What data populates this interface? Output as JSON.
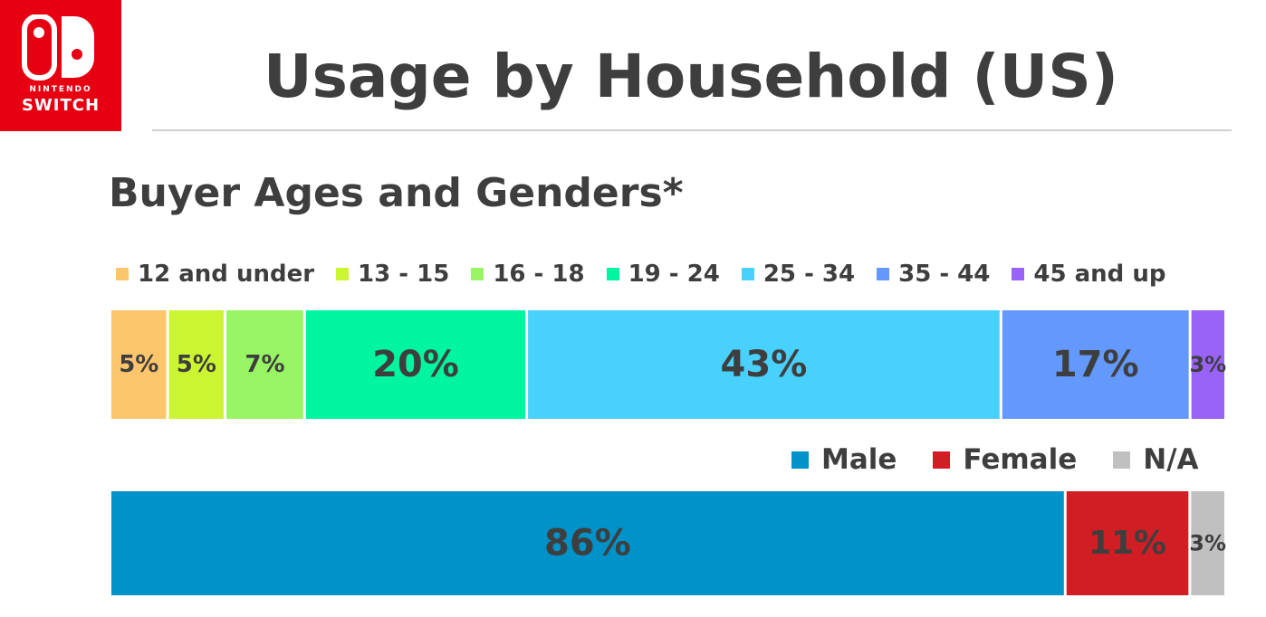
{
  "logo": {
    "small_text": "NINTENDO",
    "big_text": "SWITCH"
  },
  "title": "Usage by Household (US)",
  "subtitle": "Buyer Ages and Genders*",
  "chart_data": [
    {
      "type": "bar",
      "stacked": true,
      "orientation": "horizontal",
      "name": "Buyer Ages",
      "categories": [
        "12 and under",
        "13 - 15",
        "16 - 18",
        "19 - 24",
        "25 - 34",
        "35 - 44",
        "45 and up"
      ],
      "values": [
        5,
        5,
        7,
        20,
        43,
        17,
        3
      ],
      "value_labels": [
        "5%",
        "5%",
        "7%",
        "20%",
        "43%",
        "17%",
        "3%"
      ],
      "colors": [
        "#fdc66d",
        "#ccf531",
        "#97f563",
        "#00f69e",
        "#49d1fd",
        "#6399fc",
        "#9a63f8"
      ],
      "legend": "top",
      "grid": false
    },
    {
      "type": "bar",
      "stacked": true,
      "orientation": "horizontal",
      "name": "Buyer Genders",
      "categories": [
        "Male",
        "Female",
        "N/A"
      ],
      "values": [
        86,
        11,
        3
      ],
      "value_labels": [
        "86%",
        "11%",
        "3%"
      ],
      "colors": [
        "#0092c8",
        "#d11e24",
        "#c0c0c0"
      ],
      "legend": "top-right",
      "grid": false
    }
  ]
}
